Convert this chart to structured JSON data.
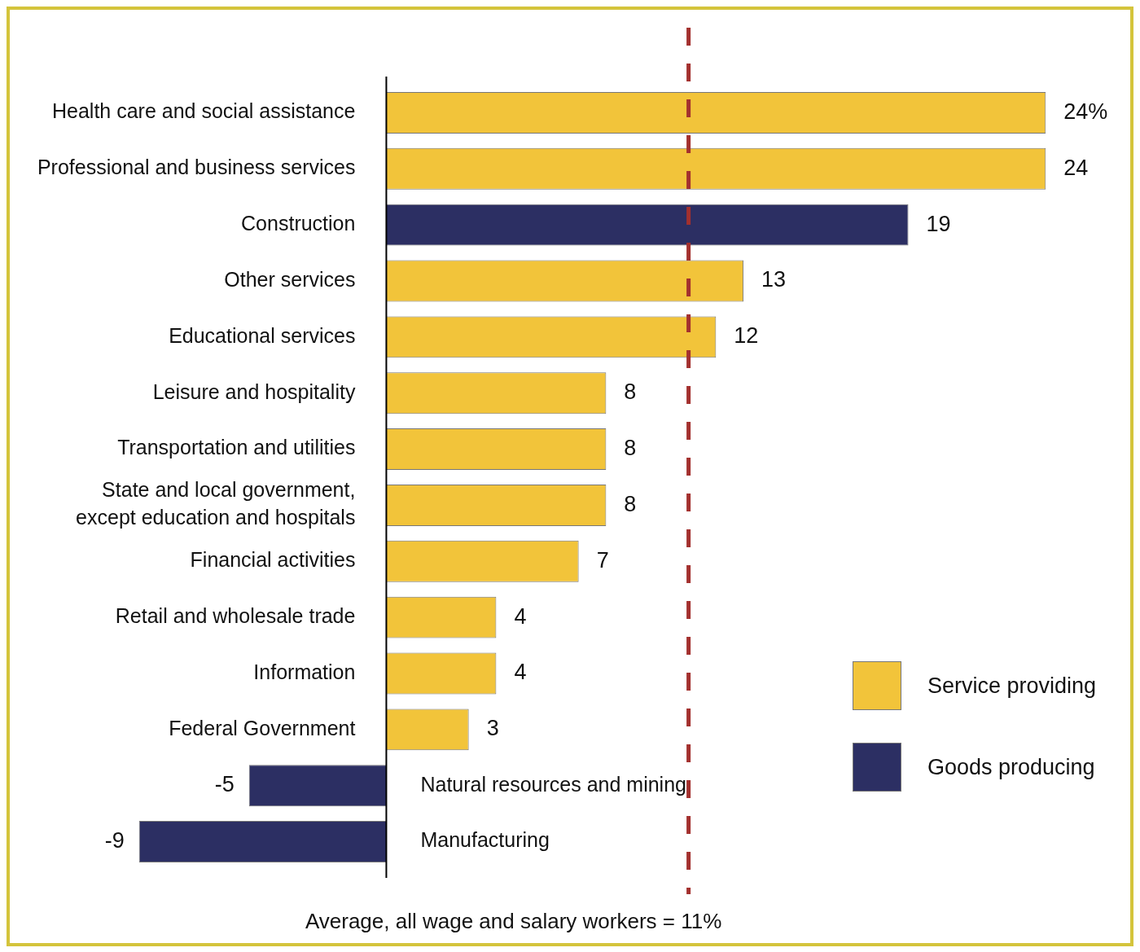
{
  "chart_data": {
    "type": "bar",
    "orientation": "horizontal",
    "stacked": true,
    "categories": [
      "Health care and social assistance",
      "Professional and business services",
      "Construction",
      "Other services",
      "Educational services",
      "Leisure and hospitality",
      "Transportation and utilities",
      "State and local government,\nexcept education and hospitals",
      "Financial activities",
      "Retail and wholesale trade",
      "Information",
      "Federal Government",
      "Natural resources and mining",
      "Manufacturing"
    ],
    "series": [
      {
        "name": "Service providing",
        "color": "#f2c43a",
        "values": [
          24,
          24,
          null,
          13,
          12,
          8,
          8,
          8,
          7,
          4,
          4,
          3,
          null,
          null
        ],
        "value_labels": [
          "24%",
          "24",
          null,
          "13",
          "12",
          "8",
          "8",
          "8",
          "7",
          "4",
          "4",
          "3",
          null,
          null
        ]
      },
      {
        "name": "Goods producing",
        "color": "#2c2f63",
        "values": [
          null,
          null,
          19,
          null,
          null,
          null,
          null,
          null,
          null,
          null,
          null,
          null,
          -5,
          -9
        ],
        "value_labels": [
          null,
          null,
          "19",
          null,
          null,
          null,
          null,
          null,
          null,
          null,
          null,
          null,
          "-5",
          "-9"
        ]
      }
    ],
    "ref_lines": [
      {
        "axis": "x",
        "value": 11,
        "label": "Average, all wage and salary workers = 11%",
        "color": "#a3302e",
        "line_style": "dashed"
      }
    ],
    "legend": "bottom right"
  }
}
